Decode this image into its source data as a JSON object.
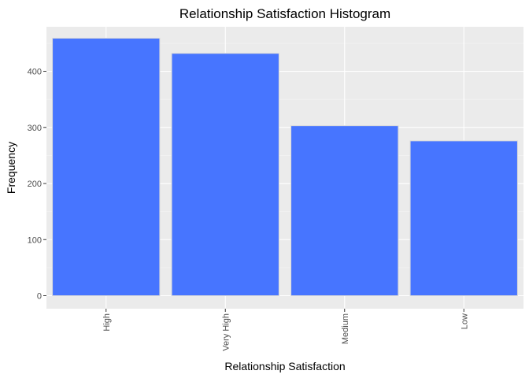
{
  "colors": {
    "panel": "#ebebeb",
    "grid_major": "#ffffff",
    "grid_minor": "#f5f5f5",
    "bar_fill": "#4775ff",
    "bar_outline": "#d9d9d9",
    "tick_mark": "#333333",
    "tick_text": "#4d4d4d"
  },
  "chart_data": {
    "type": "bar",
    "title": "Relationship Satisfaction Histogram",
    "xlabel": "Relationship Satisfaction",
    "ylabel": "Frequency",
    "categories": [
      "High",
      "Very High",
      "Medium",
      "Low"
    ],
    "values": [
      459,
      432,
      303,
      276
    ],
    "ylim": [
      0,
      480
    ],
    "yticks": [
      0,
      100,
      200,
      300,
      400
    ],
    "grid": true,
    "legend": "none",
    "xtick_rotation": "vertical"
  }
}
